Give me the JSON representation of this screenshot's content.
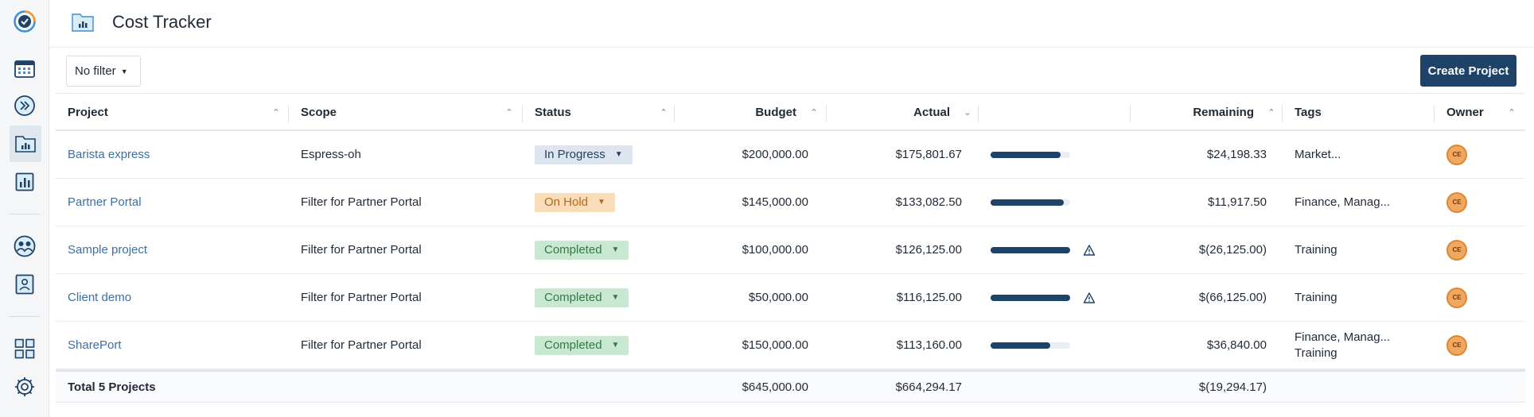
{
  "header": {
    "title": "Cost Tracker"
  },
  "sidebar": {
    "items": [
      {
        "name": "app-logo-icon"
      },
      {
        "name": "calendar-icon"
      },
      {
        "name": "fast-forward-icon"
      },
      {
        "name": "cost-tracker-icon",
        "active": true
      },
      {
        "name": "reports-icon"
      },
      {
        "name": "team-icon"
      },
      {
        "name": "contact-icon"
      },
      {
        "name": "dashboard-icon"
      },
      {
        "name": "settings-icon"
      }
    ]
  },
  "toolbar": {
    "filter_label": "No filter",
    "create_label": "Create Project"
  },
  "table": {
    "columns": {
      "project": "Project",
      "scope": "Scope",
      "status": "Status",
      "budget": "Budget",
      "actual": "Actual",
      "progress": "",
      "remaining": "Remaining",
      "tags": "Tags",
      "owner": "Owner"
    },
    "rows": [
      {
        "project": "Barista express",
        "scope": "Espress-oh",
        "status": "In Progress",
        "status_kind": "progress",
        "budget": "$200,000.00",
        "actual": "$175,801.67",
        "spent_ratio": 0.88,
        "warning": false,
        "remaining": "$24,198.33",
        "tags": [
          "Market..."
        ],
        "owner": "CE"
      },
      {
        "project": "Partner Portal",
        "scope": "Filter for Partner Portal",
        "status": "On Hold",
        "status_kind": "hold",
        "budget": "$145,000.00",
        "actual": "$133,082.50",
        "spent_ratio": 0.92,
        "warning": false,
        "remaining": "$11,917.50",
        "tags": [
          "Finance, Manag..."
        ],
        "owner": "CE"
      },
      {
        "project": "Sample project",
        "scope": "Filter for Partner Portal",
        "status": "Completed",
        "status_kind": "done",
        "budget": "$100,000.00",
        "actual": "$126,125.00",
        "spent_ratio": 1.0,
        "warning": true,
        "remaining": "$(26,125.00)",
        "tags": [
          "Training"
        ],
        "owner": "CE"
      },
      {
        "project": "Client demo",
        "scope": "Filter for Partner Portal",
        "status": "Completed",
        "status_kind": "done",
        "budget": "$50,000.00",
        "actual": "$116,125.00",
        "spent_ratio": 1.0,
        "warning": true,
        "remaining": "$(66,125.00)",
        "tags": [
          "Training"
        ],
        "owner": "CE"
      },
      {
        "project": "SharePort",
        "scope": "Filter for Partner Portal",
        "status": "Completed",
        "status_kind": "done",
        "budget": "$150,000.00",
        "actual": "$113,160.00",
        "spent_ratio": 0.75,
        "warning": false,
        "remaining": "$36,840.00",
        "tags": [
          "Finance, Manag...",
          "Training"
        ],
        "owner": "CE"
      }
    ],
    "total": {
      "label": "Total 5 Projects",
      "budget": "$645,000.00",
      "actual": "$664,294.17",
      "remaining": "$(19,294.17)"
    }
  },
  "colors": {
    "accent": "#1e4268",
    "link": "#3c6fa6",
    "status_progress": "#dde6ef",
    "status_hold": "#f8ddb8",
    "status_done": "#c9e8d1",
    "avatar": "#f0a860"
  }
}
